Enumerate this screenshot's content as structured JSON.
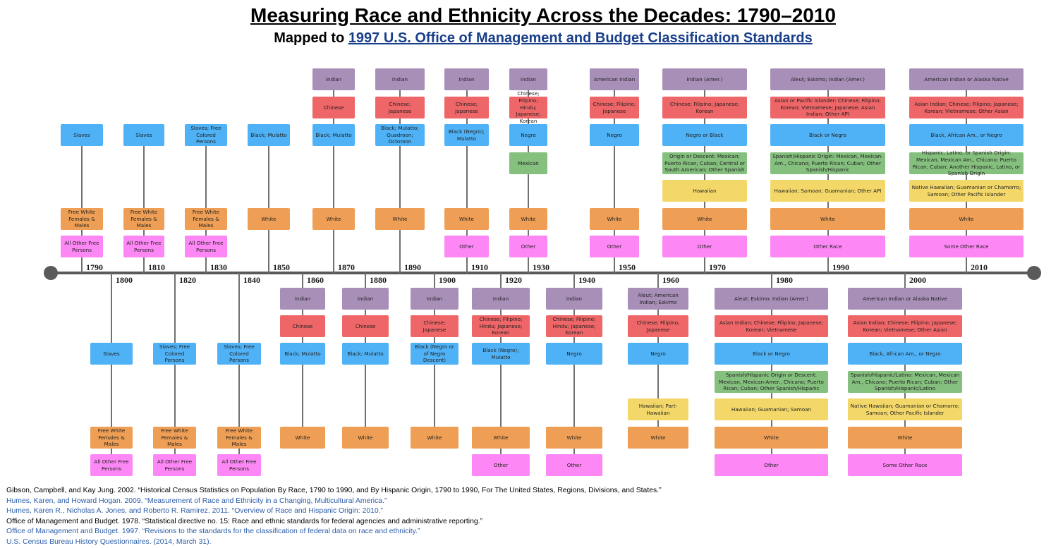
{
  "title": "Measuring Race and Ethnicity Across the Decades: 1790–2010",
  "subtitle_prefix": "Mapped to ",
  "subtitle_link": "1997 U.S. Office of Management and Budget Classification Standards",
  "colors": {
    "indian": "#a88fb8",
    "asian": "#ee6668",
    "black": "#4fb2f6",
    "hispanic": "#85c07e",
    "pacific": "#f3d869",
    "white": "#ef9f55",
    "other": "#fd88f5",
    "axis": "#5a5a5a"
  },
  "years": [
    {
      "year": "1790",
      "side": "top",
      "boxes": [
        {
          "kind": "slave",
          "text": "Slaves"
        },
        {
          "kind": "white",
          "text": "Free White Females & Males"
        },
        {
          "kind": "other",
          "text": "All Other Free Persons"
        }
      ]
    },
    {
      "year": "1800",
      "side": "bottom",
      "boxes": [
        {
          "kind": "slave",
          "text": "Slaves"
        },
        {
          "kind": "white",
          "text": "Free White Females & Males"
        },
        {
          "kind": "other",
          "text": "All Other Free Persons"
        }
      ]
    },
    {
      "year": "1810",
      "side": "top",
      "boxes": [
        {
          "kind": "slave",
          "text": "Slaves"
        },
        {
          "kind": "white",
          "text": "Free White Females & Males"
        },
        {
          "kind": "other",
          "text": "All Other Free Persons"
        }
      ]
    },
    {
      "year": "1820",
      "side": "bottom",
      "boxes": [
        {
          "kind": "slave",
          "text": "Slaves; Free Colored Persons"
        },
        {
          "kind": "white",
          "text": "Free White Females & Males"
        },
        {
          "kind": "other",
          "text": "All Other Free Persons"
        }
      ]
    },
    {
      "year": "1830",
      "side": "top",
      "boxes": [
        {
          "kind": "slave",
          "text": "Slaves; Free Colored Persons"
        },
        {
          "kind": "white",
          "text": "Free White Females & Males"
        },
        {
          "kind": "other",
          "text": "All Other Free Persons"
        }
      ]
    },
    {
      "year": "1840",
      "side": "bottom",
      "boxes": [
        {
          "kind": "slave",
          "text": "Slaves; Free Colored Persons"
        },
        {
          "kind": "white",
          "text": "Free White Females & Males"
        },
        {
          "kind": "other",
          "text": "All Other Free Persons"
        }
      ]
    },
    {
      "year": "1850",
      "side": "top",
      "boxes": [
        {
          "kind": "black",
          "text": "Black; Mulatto"
        },
        {
          "kind": "white",
          "text": "White"
        }
      ]
    },
    {
      "year": "1860",
      "side": "bottom",
      "boxes": [
        {
          "kind": "indian",
          "text": "Indian"
        },
        {
          "kind": "asian",
          "text": "Chinese"
        },
        {
          "kind": "black",
          "text": "Black; Mulatto"
        },
        {
          "kind": "white",
          "text": "White"
        }
      ]
    },
    {
      "year": "1870",
      "side": "top",
      "boxes": [
        {
          "kind": "indian",
          "text": "Indian"
        },
        {
          "kind": "asian",
          "text": "Chinese"
        },
        {
          "kind": "black",
          "text": "Black; Mulatto"
        },
        {
          "kind": "white",
          "text": "White"
        }
      ]
    },
    {
      "year": "1880",
      "side": "bottom",
      "boxes": [
        {
          "kind": "indian",
          "text": "Indian"
        },
        {
          "kind": "asian",
          "text": "Chinese"
        },
        {
          "kind": "black",
          "text": "Black; Mulatto"
        },
        {
          "kind": "white",
          "text": "White"
        }
      ]
    },
    {
      "year": "1890",
      "side": "top",
      "boxes": [
        {
          "kind": "indian",
          "text": "Indian"
        },
        {
          "kind": "asian",
          "text": "Chinese; Japanese"
        },
        {
          "kind": "black",
          "text": "Black; Mulatto; Quadroon; Octoroon"
        },
        {
          "kind": "white",
          "text": "White"
        }
      ]
    },
    {
      "year": "1900",
      "side": "bottom",
      "boxes": [
        {
          "kind": "indian",
          "text": "Indian"
        },
        {
          "kind": "asian",
          "text": "Chinese; Japanese"
        },
        {
          "kind": "black",
          "text": "Black (Negro or of Negro Descent)"
        },
        {
          "kind": "white",
          "text": "White"
        }
      ]
    },
    {
      "year": "1910",
      "side": "top",
      "boxes": [
        {
          "kind": "indian",
          "text": "Indian"
        },
        {
          "kind": "asian",
          "text": "Chinese; Japanese"
        },
        {
          "kind": "black",
          "text": "Black (Negro); Mulatto"
        },
        {
          "kind": "white",
          "text": "White"
        },
        {
          "kind": "other",
          "text": "Other"
        }
      ]
    },
    {
      "year": "1920",
      "side": "bottom",
      "boxes": [
        {
          "kind": "indian",
          "text": "Indian"
        },
        {
          "kind": "asian",
          "text": "Chinese; Filipino; Hindu; Japanese; Korean"
        },
        {
          "kind": "black",
          "text": "Black (Negro); Mulatto"
        },
        {
          "kind": "white",
          "text": "White"
        },
        {
          "kind": "other",
          "text": "Other"
        }
      ]
    },
    {
      "year": "1930",
      "side": "top",
      "boxes": [
        {
          "kind": "indian",
          "text": "Indian"
        },
        {
          "kind": "asian",
          "text": "Chinese; Filipino; Hindu; Japanese; Korean"
        },
        {
          "kind": "black",
          "text": "Negro"
        },
        {
          "kind": "hispanic",
          "text": "Mexican"
        },
        {
          "kind": "white",
          "text": "White"
        },
        {
          "kind": "other",
          "text": "Other"
        }
      ]
    },
    {
      "year": "1940",
      "side": "bottom",
      "boxes": [
        {
          "kind": "indian",
          "text": "Indian"
        },
        {
          "kind": "asian",
          "text": "Chinese; Filipino; Hindu; Japanese; Korean"
        },
        {
          "kind": "black",
          "text": "Negro"
        },
        {
          "kind": "white",
          "text": "White"
        },
        {
          "kind": "other",
          "text": "Other"
        }
      ]
    },
    {
      "year": "1950",
      "side": "top",
      "boxes": [
        {
          "kind": "indian",
          "text": "American Indian"
        },
        {
          "kind": "asian",
          "text": "Chinese; Filipino; Japanese"
        },
        {
          "kind": "black",
          "text": "Negro"
        },
        {
          "kind": "white",
          "text": "White"
        },
        {
          "kind": "other",
          "text": "Other"
        }
      ]
    },
    {
      "year": "1960",
      "side": "bottom",
      "boxes": [
        {
          "kind": "indian",
          "text": "Aleut; American Indian; Eskimo"
        },
        {
          "kind": "asian",
          "text": "Chinese; Filipino, Japanese"
        },
        {
          "kind": "black",
          "text": "Negro"
        },
        {
          "kind": "pacific",
          "text": "Hawaiian; Part-Hawaiian"
        },
        {
          "kind": "white",
          "text": "White"
        }
      ]
    },
    {
      "year": "1970",
      "side": "top",
      "boxes": [
        {
          "kind": "indian",
          "text": "Indian (Amer.)"
        },
        {
          "kind": "asian",
          "text": "Chinese; Filipino; Japanese; Korean"
        },
        {
          "kind": "black",
          "text": "Negro or Black"
        },
        {
          "kind": "hispanic",
          "text": "Origin or Descent: Mexican; Puerto Rican; Cuban; Central or South American; Other Spanish"
        },
        {
          "kind": "pacific",
          "text": "Hawaiian"
        },
        {
          "kind": "white",
          "text": "White"
        },
        {
          "kind": "other",
          "text": "Other"
        }
      ]
    },
    {
      "year": "1980",
      "side": "bottom",
      "boxes": [
        {
          "kind": "indian",
          "text": "Aleut; Eskimo; Indian (Amer.)"
        },
        {
          "kind": "asian",
          "text": "Asian Indian; Chinese; Filipino; Japanese; Korean; Vietnamese"
        },
        {
          "kind": "black",
          "text": "Black or Negro"
        },
        {
          "kind": "hispanic",
          "text": "Spanish/Hispanic Origin or Descent: Mexican, Mexican-Amer., Chicano; Puerto Rican; Cuban; Other Spanish/Hispanic"
        },
        {
          "kind": "pacific",
          "text": "Hawaiian; Guamanian; Samoan"
        },
        {
          "kind": "white",
          "text": "White"
        },
        {
          "kind": "other",
          "text": "Other"
        }
      ]
    },
    {
      "year": "1990",
      "side": "top",
      "boxes": [
        {
          "kind": "indian",
          "text": "Aleut; Eskimo; Indian (Amer.)"
        },
        {
          "kind": "asian",
          "text": "Asian or Pacific Islander: Chinese; Filipino; Korean; Vietnamese; Japanese; Asian Indian; Other API"
        },
        {
          "kind": "black",
          "text": "Black or Negro"
        },
        {
          "kind": "hispanic",
          "text": "Spanish/Hispanic Origin: Mexican, Mexican-Am., Chicano; Puerto Rican; Cuban; Other Spanish/Hispanic"
        },
        {
          "kind": "pacific",
          "text": "Hawaiian; Samoan; Guamanian; Other API"
        },
        {
          "kind": "white",
          "text": "White"
        },
        {
          "kind": "other",
          "text": "Other Race"
        }
      ]
    },
    {
      "year": "2000",
      "side": "bottom",
      "boxes": [
        {
          "kind": "indian",
          "text": "American Indian or Alaska Native"
        },
        {
          "kind": "asian",
          "text": "Asian Indian; Chinese; Filipino; Japanese; Korean; Vietnamese; Other Asian"
        },
        {
          "kind": "black",
          "text": "Black, African Am., or Negro"
        },
        {
          "kind": "hispanic",
          "text": "Spanish/Hispanic/Latino: Mexican, Mexican Am., Chicano; Puerto Rican; Cuban; Other Spanish/Hispanic/Latino"
        },
        {
          "kind": "pacific",
          "text": "Native Hawaiian; Guamanian or Chamorro; Samoan; Other Pacific Islander"
        },
        {
          "kind": "white",
          "text": "White"
        },
        {
          "kind": "other",
          "text": "Some Other Race"
        }
      ]
    },
    {
      "year": "2010",
      "side": "top",
      "boxes": [
        {
          "kind": "indian",
          "text": "American Indian or Alaska Native"
        },
        {
          "kind": "asian",
          "text": "Asian Indian; Chinese; Filipino; Japanese; Korean; Vietnamese; Other Asian"
        },
        {
          "kind": "black",
          "text": "Black, African Am., or Negro"
        },
        {
          "kind": "hispanic",
          "text": "Hispanic, Latino, or Spanish Origin: Mexican, Mexican Am., Chicano; Puerto Rican; Cuban; Another Hispanic, Latino, or Spanish Origin"
        },
        {
          "kind": "pacific",
          "text": "Native Hawaiian; Guamanian or Chamorro; Samoan; Other Pacific Islander"
        },
        {
          "kind": "white",
          "text": "White"
        },
        {
          "kind": "other",
          "text": "Some Other Race"
        }
      ]
    }
  ],
  "references": [
    {
      "text": "Gibson, Campbell, and Kay Jung. 2002. “Historical Census Statistics on Population By Race, 1790 to 1990, and By Hispanic Origin, 1790 to 1990, For The United States, Regions, Divisions, and States.”",
      "link": false
    },
    {
      "text": "Humes, Karen, and Howard Hogan. 2009. “Measurement of Race and Ethnicity in a Changing, Multicultural America.”",
      "link": true
    },
    {
      "text": "Humes, Karen R., Nicholas A. Jones, and Roberto R. Ramirez. 2011. “Overview of Race and Hispanic Origin: 2010.”",
      "link": true
    },
    {
      "text": "Office of Management and Budget. 1978. “Statistical directive no. 15: Race and ethnic standards for federal agencies and administrative reporting.”",
      "link": false
    },
    {
      "text": "Office of Management and Budget. 1997. “Revisions to the standards for the classification of federal data on race and ethnicity.”",
      "link": true
    },
    {
      "text": "U.S. Census Bureau History Questionnaires. (2014, March 31).",
      "link": true
    }
  ]
}
